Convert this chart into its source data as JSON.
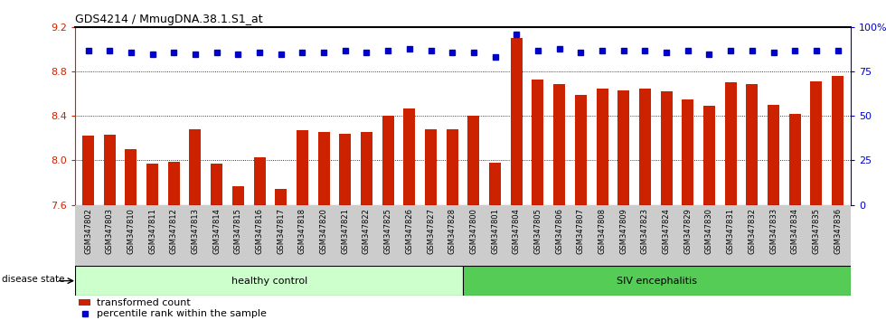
{
  "title": "GDS4214 / MmugDNA.38.1.S1_at",
  "categories": [
    "GSM347802",
    "GSM347803",
    "GSM347810",
    "GSM347811",
    "GSM347812",
    "GSM347813",
    "GSM347814",
    "GSM347815",
    "GSM347816",
    "GSM347817",
    "GSM347818",
    "GSM347820",
    "GSM347821",
    "GSM347822",
    "GSM347825",
    "GSM347826",
    "GSM347827",
    "GSM347828",
    "GSM347800",
    "GSM347801",
    "GSM347804",
    "GSM347805",
    "GSM347806",
    "GSM347807",
    "GSM347808",
    "GSM347809",
    "GSM347823",
    "GSM347824",
    "GSM347829",
    "GSM347830",
    "GSM347831",
    "GSM347832",
    "GSM347833",
    "GSM347834",
    "GSM347835",
    "GSM347836"
  ],
  "bar_values": [
    8.22,
    8.23,
    8.1,
    7.97,
    7.99,
    8.28,
    7.97,
    7.77,
    8.03,
    7.74,
    8.27,
    8.26,
    8.24,
    8.26,
    8.4,
    8.47,
    8.28,
    8.28,
    8.4,
    7.98,
    9.1,
    8.73,
    8.69,
    8.59,
    8.65,
    8.63,
    8.65,
    8.62,
    8.55,
    8.49,
    8.7,
    8.69,
    8.5,
    8.42,
    8.71,
    8.76
  ],
  "percentile_values": [
    87,
    87,
    86,
    85,
    86,
    85,
    86,
    85,
    86,
    85,
    86,
    86,
    87,
    86,
    87,
    88,
    87,
    86,
    86,
    83,
    96,
    87,
    88,
    86,
    87,
    87,
    87,
    86,
    87,
    85,
    87,
    87,
    86,
    87,
    87,
    87
  ],
  "ylim_left": [
    7.6,
    9.2
  ],
  "ylim_right": [
    0,
    100
  ],
  "yticks_left": [
    7.6,
    8.0,
    8.4,
    8.8,
    9.2
  ],
  "yticks_right": [
    0,
    25,
    50,
    75,
    100
  ],
  "bar_color": "#cc2200",
  "dot_color": "#0000cc",
  "healthy_count": 18,
  "healthy_label": "healthy control",
  "siv_label": "SIV encephalitis",
  "disease_state_label": "disease state",
  "legend_bar_label": "transformed count",
  "legend_dot_label": "percentile rank within the sample",
  "healthy_bg": "#ccffcc",
  "siv_bg": "#55cc55",
  "tick_bg": "#cccccc",
  "bg_white": "#ffffff"
}
